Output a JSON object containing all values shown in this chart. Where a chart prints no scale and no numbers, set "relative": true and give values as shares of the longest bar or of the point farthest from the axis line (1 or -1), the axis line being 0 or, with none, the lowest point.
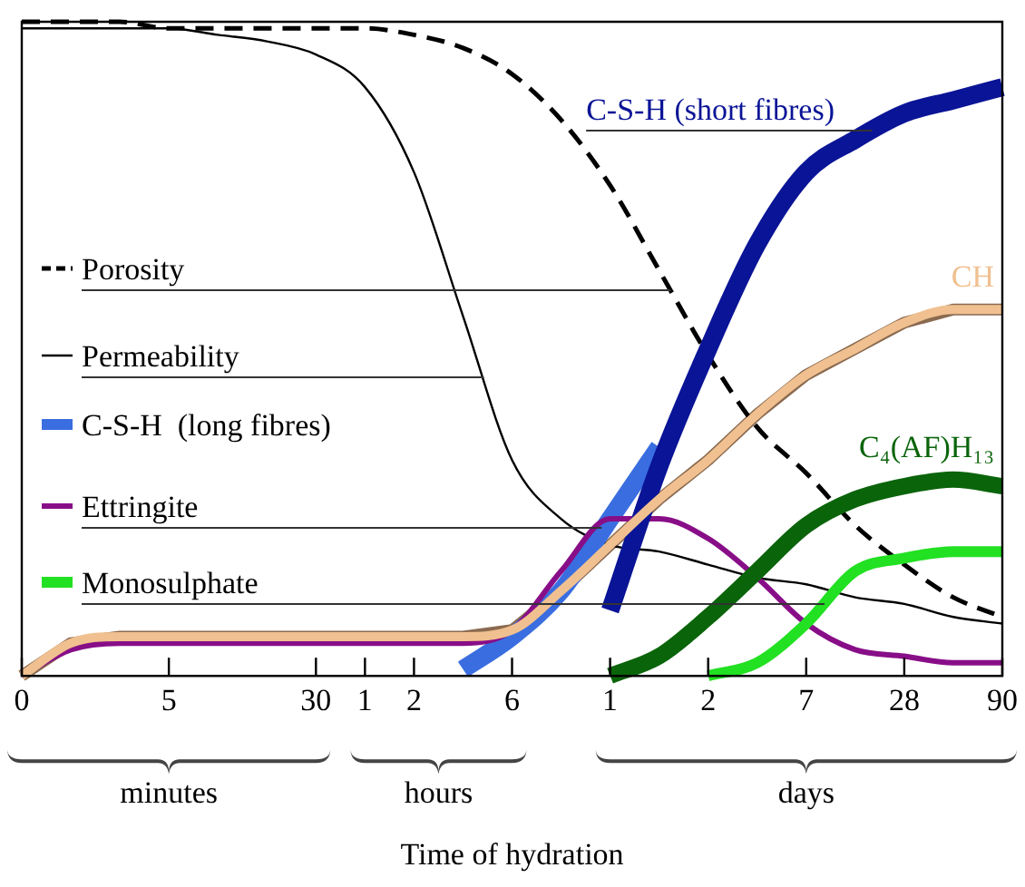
{
  "chart_data": {
    "type": "line",
    "relative": true,
    "legend": "left",
    "xlabel": "Time of hydration",
    "categories": [
      "0",
      null,
      null,
      "5",
      null,
      null,
      "30",
      "1",
      "2",
      null,
      "6",
      null,
      "1",
      null,
      "2",
      null,
      "7",
      null,
      "28",
      null,
      "90"
    ],
    "annotations": [
      "minutes",
      "hours",
      "days"
    ],
    "series": [
      {
        "name": "Porosity",
        "color": "#000000",
        "line_style": "dashed",
        "values": [
          1,
          1,
          1,
          0.99,
          0.99,
          0.99,
          0.99,
          0.99,
          0.98,
          0.96,
          0.92,
          0.85,
          0.75,
          0.62,
          0.49,
          0.38,
          0.31,
          0.23,
          0.17,
          0.12,
          0.09
        ]
      },
      {
        "name": "Permeability",
        "color": "#000000",
        "values": [
          0.99,
          0.99,
          0.99,
          0.99,
          0.98,
          0.97,
          0.95,
          0.9,
          0.77,
          0.55,
          0.33,
          0.24,
          0.2,
          0.19,
          0.17,
          0.15,
          0.14,
          0.12,
          0.11,
          0.09,
          0.08
        ]
      },
      {
        "name": "C-S-H  (long fibres)",
        "color": "#3a6ee0",
        "values": [
          null,
          null,
          null,
          null,
          null,
          null,
          null,
          null,
          null,
          0.01,
          0.06,
          0.13,
          0.24,
          0.35,
          null,
          null,
          null,
          null,
          null,
          null,
          null
        ]
      },
      {
        "name": "Ettringite",
        "color": "#880e88",
        "values": [
          0,
          0.04,
          0.05,
          0.05,
          0.05,
          0.05,
          0.05,
          0.05,
          0.05,
          0.05,
          0.07,
          0.16,
          0.24,
          0.24,
          0.21,
          0.15,
          0.08,
          0.04,
          0.03,
          0.02,
          0.02
        ]
      },
      {
        "name": "Monosulphate",
        "color": "#22e022",
        "values": [
          null,
          null,
          null,
          null,
          null,
          null,
          null,
          null,
          null,
          null,
          null,
          null,
          null,
          null,
          0,
          0.02,
          0.08,
          0.16,
          0.18,
          0.19,
          0.19
        ]
      },
      {
        "name": "C-S-H (short fibres)",
        "color": "#0a1496",
        "values": [
          null,
          null,
          null,
          null,
          null,
          null,
          null,
          null,
          null,
          null,
          null,
          null,
          0.1,
          0.32,
          0.5,
          0.66,
          0.77,
          0.82,
          0.86,
          0.88,
          0.9
        ]
      },
      {
        "name": "CH",
        "color": "#f0c090",
        "values": [
          0,
          0.05,
          0.06,
          0.06,
          0.06,
          0.06,
          0.06,
          0.06,
          0.06,
          0.06,
          0.07,
          0.13,
          0.2,
          0.27,
          0.33,
          0.4,
          0.46,
          0.5,
          0.54,
          0.56,
          0.56
        ]
      },
      {
        "name": "C₄(AF)H₁₃",
        "color": "#0a640a",
        "values": [
          null,
          null,
          null,
          null,
          null,
          null,
          null,
          null,
          null,
          null,
          null,
          null,
          0,
          0.03,
          0.09,
          0.16,
          0.23,
          0.27,
          0.29,
          0.3,
          0.29
        ]
      }
    ]
  }
}
